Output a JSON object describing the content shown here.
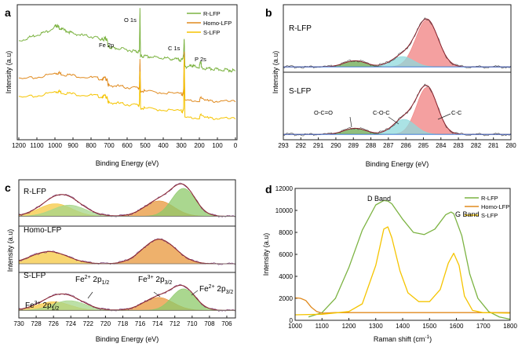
{
  "chart_data": [
    {
      "panel_label": "a",
      "type": "line",
      "title": "",
      "xlabel": "Binding Energy (eV)",
      "ylabel": "Intensity (a.u)",
      "xlim": [
        1200,
        0
      ],
      "ylim": [
        0,
        10
      ],
      "xticks": [
        1200,
        1100,
        1000,
        900,
        800,
        700,
        600,
        500,
        400,
        300,
        200,
        100,
        0
      ],
      "legend_position": "top-right",
      "series": [
        {
          "name": "R-LFP",
          "color": "#7cb342",
          "x": [
            1200,
            1150,
            1100,
            1050,
            1000,
            990,
            980,
            960,
            930,
            900,
            850,
            800,
            760,
            740,
            730,
            720,
            711,
            705,
            700,
            680,
            650,
            600,
            560,
            540,
            532,
            529,
            526,
            520,
            500,
            460,
            420,
            380,
            340,
            310,
            295,
            287,
            284,
            280,
            260,
            240,
            230,
            200,
            191,
            188,
            160,
            130,
            100,
            60,
            30,
            0
          ],
          "y": [
            7.35,
            7.6,
            7.85,
            8.05,
            8.45,
            8.55,
            8.4,
            8.25,
            8.1,
            7.95,
            7.8,
            7.7,
            7.6,
            7.45,
            7.5,
            7.6,
            7.4,
            7.0,
            6.9,
            6.85,
            6.8,
            6.7,
            6.6,
            6.55,
            6.6,
            9.85,
            6.25,
            6.2,
            6.2,
            6.15,
            6.1,
            6.05,
            6.0,
            5.95,
            5.9,
            6.4,
            7.6,
            5.4,
            5.45,
            5.5,
            5.45,
            5.4,
            5.9,
            5.3,
            5.25,
            5.25,
            5.2,
            5.2,
            5.15,
            5.1
          ]
        },
        {
          "name": "Homo-LFP",
          "color": "#e08a1e",
          "x": [
            1200,
            1100,
            1000,
            980,
            960,
            900,
            800,
            740,
            720,
            711,
            705,
            700,
            650,
            600,
            540,
            532,
            529,
            526,
            500,
            400,
            300,
            290,
            287,
            284,
            280,
            200,
            190,
            150,
            100,
            0
          ],
          "y": [
            4.45,
            4.6,
            4.9,
            4.95,
            4.85,
            4.75,
            4.6,
            4.5,
            4.55,
            4.4,
            4.05,
            4.0,
            3.95,
            3.85,
            3.8,
            3.85,
            6.05,
            3.6,
            3.55,
            3.45,
            3.35,
            3.3,
            3.8,
            6.6,
            2.85,
            2.85,
            3.1,
            2.8,
            2.8,
            2.75
          ]
        },
        {
          "name": "S-LFP",
          "color": "#f5c400",
          "x": [
            1200,
            1100,
            1000,
            980,
            960,
            900,
            800,
            740,
            720,
            711,
            705,
            700,
            650,
            600,
            540,
            532,
            529,
            526,
            500,
            400,
            300,
            290,
            287,
            284,
            280,
            200,
            190,
            150,
            100,
            0
          ],
          "y": [
            3.05,
            3.2,
            3.5,
            3.55,
            3.45,
            3.35,
            3.25,
            3.15,
            3.2,
            3.05,
            2.75,
            2.7,
            2.65,
            2.55,
            2.5,
            2.55,
            5.1,
            2.3,
            2.25,
            2.15,
            2.05,
            2.0,
            2.4,
            6.2,
            1.55,
            1.55,
            1.8,
            1.5,
            1.5,
            1.45
          ]
        }
      ],
      "annotations": [
        {
          "text": "Fe 2p",
          "x": 720,
          "y": 8.3
        },
        {
          "text": "O 1s",
          "x": 531,
          "y": 10.45
        },
        {
          "text": "C 1s",
          "x": 284,
          "y": 8.5
        },
        {
          "text": "P 2s",
          "x": 190,
          "y": 7.05
        }
      ]
    },
    {
      "panel_label": "b",
      "type": "area",
      "title": "",
      "xlabel": "Binding Energy (eV)",
      "ylabel": "Intensity (a.u)",
      "xlim": [
        293,
        280
      ],
      "xticks": [
        293,
        292,
        291,
        290,
        289,
        288,
        287,
        286,
        285,
        284,
        283,
        282,
        281,
        280
      ],
      "layout": "two stacked sub-plots",
      "subplots": [
        {
          "name": "R-LFP",
          "label": "R-LFP",
          "components": [
            {
              "name": "C-C",
              "center": 284.8,
              "height": 1.0,
              "fwhm": 1.5,
              "color": "#f08080"
            },
            {
              "name": "C-O-C",
              "center": 286.2,
              "height": 0.22,
              "fwhm": 1.5,
              "color": "#8fd9dc"
            },
            {
              "name": "O-C=O",
              "center": 288.9,
              "height": 0.13,
              "fwhm": 1.5,
              "color": "#6aa84f"
            }
          ]
        },
        {
          "name": "S-LFP",
          "label": "S-LFP",
          "components": [
            {
              "name": "C-C",
              "center": 284.8,
              "height": 1.0,
              "fwhm": 1.4,
              "color": "#f08080"
            },
            {
              "name": "C-O-C",
              "center": 286.1,
              "height": 0.32,
              "fwhm": 1.5,
              "color": "#8fd9dc"
            },
            {
              "name": "O-C=O",
              "center": 288.9,
              "height": 0.13,
              "fwhm": 1.5,
              "color": "#6aa84f"
            }
          ]
        }
      ],
      "annotations": [
        "O-C=O",
        "C-O-C",
        "C-C"
      ]
    },
    {
      "panel_label": "c",
      "type": "area",
      "title": "",
      "xlabel": "Binding Energy (eV)",
      "ylabel": "Intensity (a.u)",
      "xlim": [
        730,
        705
      ],
      "xticks": [
        730,
        728,
        726,
        724,
        722,
        720,
        718,
        716,
        714,
        712,
        710,
        708,
        706
      ],
      "layout": "three stacked sub-plots",
      "subplots": [
        {
          "name": "R-LFP",
          "label": "R-LFP",
          "components": [
            {
              "name": "Fe3+ 2p1/2",
              "center": 725.8,
              "height": 0.45,
              "fwhm": 4.5,
              "color": "#f5c842"
            },
            {
              "name": "Fe2+ 2p1/2",
              "center": 724.2,
              "height": 0.4,
              "fwhm": 4.5,
              "color": "#a5d68a"
            },
            {
              "name": "Fe3+ 2p3/2",
              "center": 713.8,
              "height": 0.55,
              "fwhm": 4.0,
              "color": "#e8973b"
            },
            {
              "name": "Fe2+ 2p3/2",
              "center": 711.0,
              "height": 1.0,
              "fwhm": 3.2,
              "color": "#8dc96a"
            }
          ]
        },
        {
          "name": "Homo-LFP",
          "label": "Homo-LFP",
          "components": [
            {
              "name": "Fe3+ 2p1/2",
              "center": 726.5,
              "height": 0.5,
              "fwhm": 5.0,
              "color": "#f5c842"
            },
            {
              "name": "Fe3+ 2p3/2",
              "center": 713.8,
              "height": 1.0,
              "fwhm": 4.5,
              "color": "#e8973b"
            }
          ]
        },
        {
          "name": "S-LFP",
          "label": "S-LFP",
          "components": [
            {
              "name": "Fe3+ 2p1/2",
              "center": 726.0,
              "height": 0.4,
              "fwhm": 4.5,
              "color": "#f5c842"
            },
            {
              "name": "Fe2+ 2p1/2",
              "center": 724.2,
              "height": 0.45,
              "fwhm": 4.5,
              "color": "#a5d68a"
            },
            {
              "name": "Fe3+ 2p3/2",
              "center": 713.9,
              "height": 0.6,
              "fwhm": 4.0,
              "color": "#e8973b"
            },
            {
              "name": "Fe2+ 2p3/2",
              "center": 711.0,
              "height": 1.0,
              "fwhm": 3.2,
              "color": "#8dc96a"
            }
          ]
        }
      ],
      "annotations": [
        "Fe3+ 2p1/2 (left)",
        "Fe2+ 2p1/2",
        "Fe3+ 2p3/2",
        "Fe2+ 2p3/2"
      ]
    },
    {
      "panel_label": "d",
      "type": "line",
      "title": "",
      "xlabel": "Raman shift (cm⁻¹)",
      "ylabel": "Intensity (a.u)",
      "xlim": [
        1000,
        1800
      ],
      "ylim": [
        0,
        12000
      ],
      "xticks": [
        1000,
        1100,
        1200,
        1300,
        1400,
        1500,
        1600,
        1700,
        1800
      ],
      "yticks": [
        0,
        2000,
        4000,
        6000,
        8000,
        10000,
        12000
      ],
      "legend_position": "top-right",
      "series": [
        {
          "name": "R-LFP",
          "color": "#7cb342",
          "x": [
            1050,
            1100,
            1150,
            1200,
            1250,
            1300,
            1330,
            1345,
            1360,
            1400,
            1440,
            1480,
            1520,
            1560,
            1580,
            1590,
            1620,
            1650,
            1680,
            1720,
            1760,
            1800
          ],
          "y": [
            300,
            700,
            2000,
            4800,
            8200,
            10500,
            10900,
            10850,
            10600,
            9200,
            8000,
            7800,
            8300,
            9600,
            9850,
            9700,
            7700,
            4200,
            2000,
            800,
            300,
            100
          ]
        },
        {
          "name": "Homo-LFP",
          "color": "#e08a1e",
          "x": [
            1000,
            1020,
            1040,
            1060,
            1080,
            1100,
            1150,
            1300,
            1500,
            1700,
            1800
          ],
          "y": [
            2050,
            2000,
            1800,
            1200,
            800,
            650,
            700,
            700,
            700,
            700,
            700
          ]
        },
        {
          "name": "S-LFP",
          "color": "#f5c400",
          "x": [
            1000,
            1100,
            1200,
            1250,
            1300,
            1330,
            1345,
            1360,
            1390,
            1420,
            1460,
            1500,
            1540,
            1570,
            1590,
            1610,
            1630,
            1660,
            1700,
            1800
          ],
          "y": [
            500,
            550,
            800,
            1500,
            5000,
            8300,
            8500,
            7500,
            4500,
            2500,
            1700,
            1700,
            2800,
            5200,
            6100,
            5000,
            2200,
            900,
            700,
            650
          ]
        }
      ],
      "annotations": [
        {
          "text": "D Band",
          "x": 1345,
          "y": 11300
        },
        {
          "text": "G Band",
          "x": 1585,
          "y": 9900
        }
      ]
    }
  ],
  "panel_a": {
    "label": "a",
    "xlabel": "Binding Energy (eV)",
    "ylabel": "Intensity (a.u)",
    "xticks": [
      "1200",
      "1100",
      "1000",
      "900",
      "800",
      "700",
      "600",
      "500",
      "400",
      "300",
      "200",
      "100",
      "0"
    ],
    "legend": [
      "R-LFP",
      "Homo-LFP",
      "S-LFP"
    ],
    "ann_fe": "Fe 2p",
    "ann_o": "O 1s",
    "ann_c": "C 1s",
    "ann_p": "P 2s"
  },
  "panel_b": {
    "label": "b",
    "xlabel": "Binding Energy (eV)",
    "ylabel": "Intensity (a.u)",
    "xticks": [
      "293",
      "292",
      "291",
      "290",
      "289",
      "288",
      "287",
      "286",
      "285",
      "284",
      "283",
      "282",
      "281",
      "280"
    ],
    "top_label": "R-LFP",
    "bottom_label": "S-LFP",
    "ann_oco": "O-C=O",
    "ann_coc": "C-O-C",
    "ann_cc": "C-C"
  },
  "panel_c": {
    "label": "c",
    "xlabel": "Binding Energy (eV)",
    "ylabel": "Intensity (a.u)",
    "xticks": [
      "730",
      "728",
      "726",
      "724",
      "722",
      "720",
      "718",
      "716",
      "714",
      "712",
      "710",
      "708",
      "706"
    ],
    "r_label": "R-LFP",
    "homo_label": "Homo-LFP",
    "s_label": "S-LFP",
    "ann_fe2_12": {
      "pre": "Fe",
      "sup": "2+",
      "mid": " 2p",
      "sub": "1/2"
    },
    "ann_fe3_32": {
      "pre": "Fe",
      "sup": "3+",
      "mid": " 2p",
      "sub": "3/2"
    },
    "ann_fe2_32": {
      "pre": "Fe",
      "sup": "2+",
      "mid": " 2p",
      "sub": "3/2"
    },
    "ann_fe3_12": {
      "pre": "Fe",
      "sup": "3+",
      "mid": " 2p",
      "sub": "1/2"
    }
  },
  "panel_d": {
    "label": "d",
    "xlabel_main": "Raman shift (cm",
    "xlabel_sup": "-1",
    "xlabel_end": ")",
    "ylabel": "Intensity (a.u)",
    "xticks": [
      "1000",
      "1100",
      "1200",
      "1300",
      "1400",
      "1500",
      "1600",
      "1700",
      "1800"
    ],
    "yticks": [
      "0",
      "2000",
      "4000",
      "6000",
      "8000",
      "10000",
      "12000"
    ],
    "legend": [
      "R-LFP",
      "Homo-LFP",
      "S-LFP"
    ],
    "ann_d": "D Band",
    "ann_g": "G Band"
  },
  "colors": {
    "r_lfp": "#7cb342",
    "homo_lfp": "#e08a1e",
    "s_lfp": "#f5c400",
    "c_c": "#f08080",
    "c_o_c": "#8fd9dc",
    "o_c_o": "#6aa84f",
    "envelope": "#8b2530",
    "baseline": "#2e6fd9",
    "raw": "#4a4a4a"
  }
}
